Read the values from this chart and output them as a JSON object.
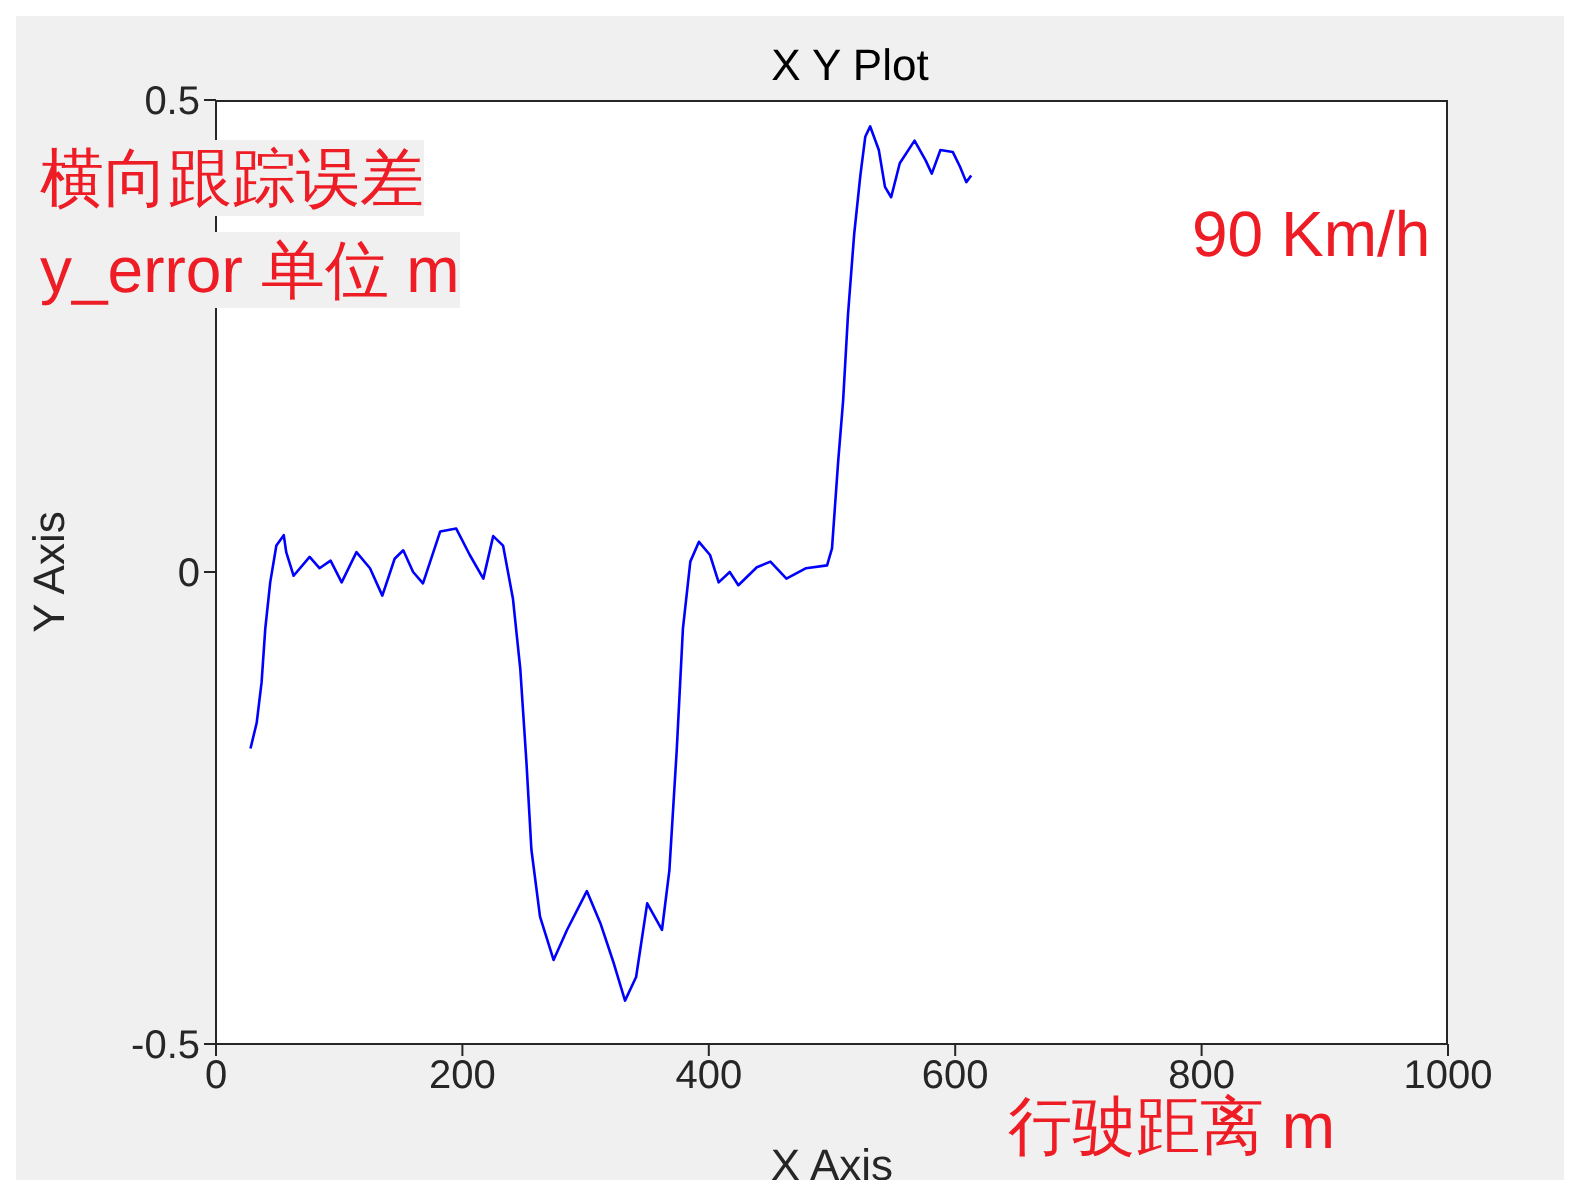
{
  "chart_data": {
    "type": "line",
    "title": "X Y Plot",
    "xlabel": "X Axis",
    "ylabel": "Y Axis",
    "annotations": [
      "横向跟踪误差",
      "y_error 单位 m",
      "90 Km/h",
      "行驶距离 m"
    ],
    "xlim": [
      0,
      1000
    ],
    "xticks": [
      0,
      200,
      400,
      600,
      800,
      1000
    ],
    "ylim": [
      -0.5,
      0.5
    ],
    "yticks": [
      -0.5,
      0,
      0.5
    ],
    "grid": false,
    "legend": false,
    "marker": "none",
    "line_style": "solid",
    "series": [
      {
        "color": "#0000ff",
        "x": [
          28,
          33,
          37,
          40,
          44,
          49,
          55,
          57,
          63,
          76,
          84,
          93,
          102,
          114,
          125,
          135,
          145,
          152,
          160,
          168,
          182,
          195,
          206,
          217,
          225,
          233,
          241,
          247,
          252,
          256,
          263,
          274,
          285,
          301,
          312,
          323,
          332,
          341,
          350,
          362,
          368,
          374,
          379,
          385,
          392,
          401,
          408,
          417,
          424,
          439,
          450,
          463,
          479,
          496,
          500,
          505,
          509,
          513,
          518,
          523,
          527,
          531,
          538,
          543,
          548,
          555,
          567,
          576,
          581,
          588,
          598,
          604,
          609,
          613
        ],
        "values": [
          -0.187,
          -0.16,
          -0.117,
          -0.06,
          -0.011,
          0.028,
          0.039,
          0.021,
          -0.004,
          0.016,
          0.004,
          0.012,
          -0.011,
          0.021,
          0.004,
          -0.025,
          0.014,
          0.023,
          0,
          -0.012,
          0.043,
          0.046,
          0.018,
          -0.007,
          0.038,
          0.028,
          -0.028,
          -0.103,
          -0.202,
          -0.294,
          -0.365,
          -0.411,
          -0.379,
          -0.338,
          -0.372,
          -0.415,
          -0.454,
          -0.429,
          -0.351,
          -0.379,
          -0.316,
          -0.188,
          -0.06,
          0.011,
          0.032,
          0.018,
          -0.011,
          0,
          -0.014,
          0.005,
          0.011,
          -0.007,
          0.004,
          0.007,
          0.025,
          0.117,
          0.181,
          0.273,
          0.358,
          0.42,
          0.461,
          0.472,
          0.447,
          0.408,
          0.397,
          0.433,
          0.457,
          0.436,
          0.422,
          0.447,
          0.445,
          0.429,
          0.413,
          0.42
        ]
      }
    ]
  }
}
